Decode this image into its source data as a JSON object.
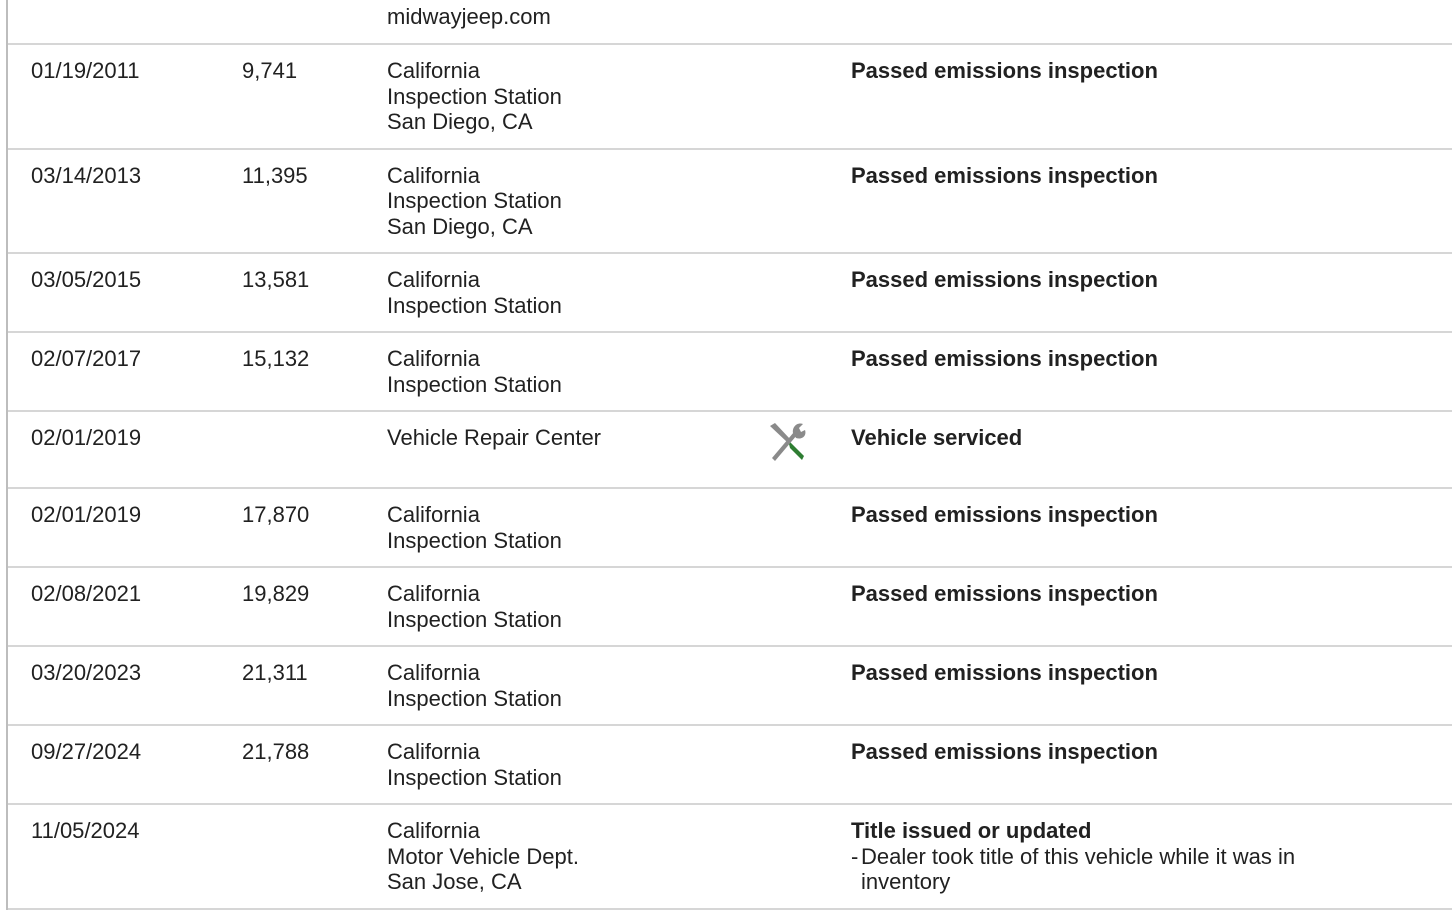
{
  "table": {
    "rows": [
      {
        "source": [
          "midwayjeep.com"
        ]
      },
      {
        "date": "01/19/2011",
        "mileage": "9,741",
        "source": [
          "California",
          "Inspection Station",
          "San Diego, CA"
        ],
        "comment": "Passed emissions inspection"
      },
      {
        "date": "03/14/2013",
        "mileage": "11,395",
        "source": [
          "California",
          "Inspection Station",
          "San Diego, CA"
        ],
        "comment": "Passed emissions inspection"
      },
      {
        "date": "03/05/2015",
        "mileage": "13,581",
        "source": [
          "California",
          "Inspection Station"
        ],
        "comment": "Passed emissions inspection"
      },
      {
        "date": "02/07/2017",
        "mileage": "15,132",
        "source": [
          "California",
          "Inspection Station"
        ],
        "comment": "Passed emissions inspection"
      },
      {
        "date": "02/01/2019",
        "source": [
          "Vehicle Repair Center"
        ],
        "comment": "Vehicle serviced"
      },
      {
        "date": "02/01/2019",
        "mileage": "17,870",
        "source": [
          "California",
          "Inspection Station"
        ],
        "comment": "Passed emissions inspection"
      },
      {
        "date": "02/08/2021",
        "mileage": "19,829",
        "source": [
          "California",
          "Inspection Station"
        ],
        "comment": "Passed emissions inspection"
      },
      {
        "date": "03/20/2023",
        "mileage": "21,311",
        "source": [
          "California",
          "Inspection Station"
        ],
        "comment": "Passed emissions inspection"
      },
      {
        "date": "09/27/2024",
        "mileage": "21,788",
        "source": [
          "California",
          "Inspection Station"
        ],
        "comment": "Passed emissions inspection"
      },
      {
        "date": "11/05/2024",
        "source": [
          "California",
          "Motor Vehicle Dept.",
          "San Jose, CA"
        ],
        "comment": "Title issued or updated",
        "details": [
          "Dealer took title of this vehicle while it was in inventory"
        ]
      }
    ]
  }
}
